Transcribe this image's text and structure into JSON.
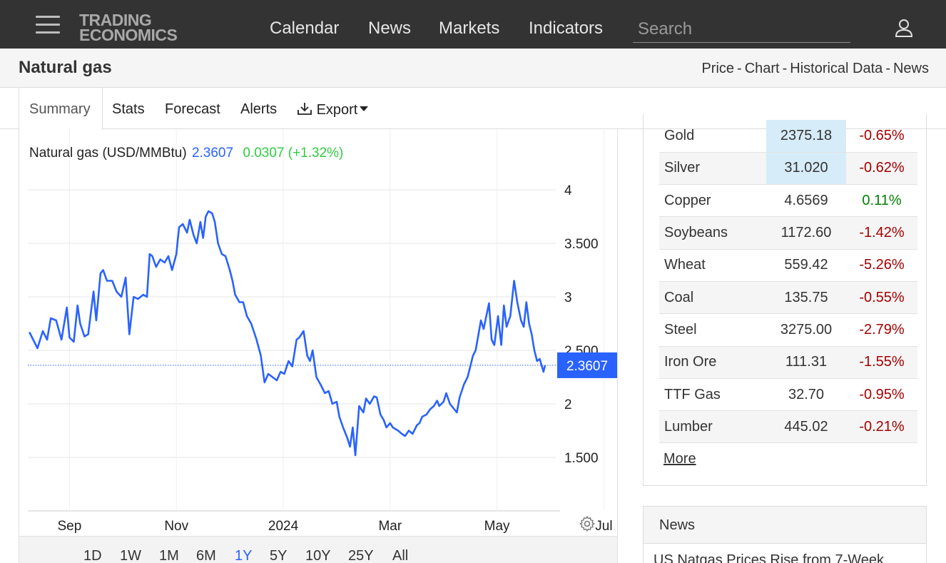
{
  "nav": {
    "logo_line1": "TRADING",
    "logo_line2": "ECONOMICS",
    "links": [
      "Calendar",
      "News",
      "Markets",
      "Indicators"
    ],
    "search_placeholder": "Search"
  },
  "title_bar": {
    "title": "Natural gas",
    "links": [
      "Price",
      "Chart",
      "Historical Data",
      "News"
    ],
    "separator": "-"
  },
  "tabs": {
    "summary": "Summary",
    "stats": "Stats",
    "forecast": "Forecast",
    "alerts": "Alerts",
    "export": "Export",
    "active": "Summary"
  },
  "chart_legend": {
    "name": "Natural gas (USD/MMBtu)",
    "price": "2.3607",
    "change": "0.0307 (+1.32%)"
  },
  "chart_data": {
    "type": "line",
    "title": "Natural gas (USD/MMBtu)",
    "x_ticks": [
      "Sep",
      "Nov",
      "2024",
      "Mar",
      "May",
      "Jul"
    ],
    "y_ticks": [
      "4",
      "3.500",
      "3",
      "2.500",
      "2",
      "1.500"
    ],
    "ylim": [
      1.0,
      4.3
    ],
    "last_value": 2.3607,
    "last_label": "2.3607",
    "line_color": "#2962ff",
    "grid": true,
    "x_unit": "month offset from Sep 2023 (0 = Sep 1, 2023)",
    "series": [
      {
        "name": "Natural gas",
        "points": [
          [
            -0.75,
            2.67
          ],
          [
            -0.7,
            2.62
          ],
          [
            -0.6,
            2.52
          ],
          [
            -0.5,
            2.68
          ],
          [
            -0.42,
            2.6
          ],
          [
            -0.35,
            2.8
          ],
          [
            -0.25,
            2.78
          ],
          [
            -0.15,
            2.6
          ],
          [
            -0.05,
            2.9
          ],
          [
            0.0,
            2.62
          ],
          [
            0.08,
            2.58
          ],
          [
            0.15,
            2.92
          ],
          [
            0.2,
            2.75
          ],
          [
            0.28,
            2.63
          ],
          [
            0.35,
            2.65
          ],
          [
            0.45,
            3.05
          ],
          [
            0.5,
            2.78
          ],
          [
            0.58,
            3.22
          ],
          [
            0.63,
            3.25
          ],
          [
            0.7,
            3.15
          ],
          [
            0.8,
            3.15
          ],
          [
            0.88,
            3.05
          ],
          [
            0.97,
            3.0
          ],
          [
            1.05,
            3.18
          ],
          [
            1.12,
            2.65
          ],
          [
            1.2,
            3.0
          ],
          [
            1.28,
            2.98
          ],
          [
            1.38,
            3.02
          ],
          [
            1.45,
            3.0
          ],
          [
            1.5,
            3.4
          ],
          [
            1.55,
            3.38
          ],
          [
            1.62,
            3.28
          ],
          [
            1.7,
            3.35
          ],
          [
            1.78,
            3.32
          ],
          [
            1.85,
            3.38
          ],
          [
            1.92,
            3.25
          ],
          [
            2.0,
            3.4
          ],
          [
            2.05,
            3.65
          ],
          [
            2.12,
            3.68
          ],
          [
            2.2,
            3.6
          ],
          [
            2.25,
            3.72
          ],
          [
            2.32,
            3.58
          ],
          [
            2.38,
            3.5
          ],
          [
            2.45,
            3.7
          ],
          [
            2.5,
            3.55
          ],
          [
            2.55,
            3.75
          ],
          [
            2.6,
            3.8
          ],
          [
            2.67,
            3.78
          ],
          [
            2.72,
            3.7
          ],
          [
            2.78,
            3.5
          ],
          [
            2.85,
            3.4
          ],
          [
            2.92,
            3.38
          ],
          [
            3.0,
            3.25
          ],
          [
            3.05,
            3.15
          ],
          [
            3.1,
            3.02
          ],
          [
            3.18,
            2.95
          ],
          [
            3.25,
            2.95
          ],
          [
            3.32,
            2.82
          ],
          [
            3.4,
            2.75
          ],
          [
            3.5,
            2.6
          ],
          [
            3.58,
            2.45
          ],
          [
            3.65,
            2.2
          ],
          [
            3.72,
            2.28
          ],
          [
            3.8,
            2.25
          ],
          [
            3.88,
            2.22
          ],
          [
            3.95,
            2.3
          ],
          [
            4.02,
            2.28
          ],
          [
            4.1,
            2.4
          ],
          [
            4.17,
            2.35
          ],
          [
            4.25,
            2.6
          ],
          [
            4.3,
            2.62
          ],
          [
            4.38,
            2.68
          ],
          [
            4.45,
            2.45
          ],
          [
            4.5,
            2.4
          ],
          [
            4.55,
            2.5
          ],
          [
            4.62,
            2.25
          ],
          [
            4.7,
            2.18
          ],
          [
            4.78,
            2.1
          ],
          [
            4.85,
            2.12
          ],
          [
            4.92,
            2.0
          ],
          [
            5.0,
            2.02
          ],
          [
            5.05,
            1.88
          ],
          [
            5.12,
            1.78
          ],
          [
            5.2,
            1.68
          ],
          [
            5.25,
            1.6
          ],
          [
            5.3,
            1.78
          ],
          [
            5.35,
            1.52
          ],
          [
            5.42,
            1.98
          ],
          [
            5.5,
            1.92
          ],
          [
            5.55,
            2.05
          ],
          [
            5.62,
            2.0
          ],
          [
            5.7,
            2.07
          ],
          [
            5.75,
            2.06
          ],
          [
            5.82,
            1.9
          ],
          [
            5.88,
            1.85
          ],
          [
            5.93,
            1.78
          ],
          [
            6.0,
            1.82
          ],
          [
            6.05,
            1.78
          ],
          [
            6.15,
            1.75
          ],
          [
            6.22,
            1.72
          ],
          [
            6.28,
            1.7
          ],
          [
            6.35,
            1.75
          ],
          [
            6.42,
            1.72
          ],
          [
            6.5,
            1.8
          ],
          [
            6.55,
            1.82
          ],
          [
            6.6,
            1.88
          ],
          [
            6.68,
            1.9
          ],
          [
            6.75,
            1.95
          ],
          [
            6.82,
            1.98
          ],
          [
            6.88,
            2.03
          ],
          [
            6.92,
            1.98
          ],
          [
            7.0,
            2.02
          ],
          [
            7.05,
            2.1
          ],
          [
            7.12,
            2.0
          ],
          [
            7.2,
            1.95
          ],
          [
            7.25,
            1.92
          ],
          [
            7.3,
            2.06
          ],
          [
            7.38,
            2.18
          ],
          [
            7.45,
            2.25
          ],
          [
            7.5,
            2.35
          ],
          [
            7.55,
            2.45
          ],
          [
            7.6,
            2.5
          ],
          [
            7.7,
            2.78
          ],
          [
            7.75,
            2.7
          ],
          [
            7.85,
            2.94
          ],
          [
            7.9,
            2.6
          ],
          [
            7.95,
            2.55
          ],
          [
            8.02,
            2.82
          ],
          [
            8.08,
            2.55
          ],
          [
            8.13,
            2.92
          ],
          [
            8.18,
            2.72
          ],
          [
            8.25,
            2.82
          ],
          [
            8.32,
            3.15
          ],
          [
            8.38,
            2.95
          ],
          [
            8.45,
            2.78
          ],
          [
            8.5,
            2.72
          ],
          [
            8.55,
            2.95
          ],
          [
            8.6,
            2.75
          ],
          [
            8.65,
            2.65
          ],
          [
            8.7,
            2.5
          ],
          [
            8.75,
            2.4
          ],
          [
            8.8,
            2.42
          ],
          [
            8.87,
            2.3
          ],
          [
            8.9,
            2.36
          ]
        ]
      }
    ]
  },
  "chart_ranges": {
    "buttons": [
      "1D",
      "1W",
      "1M",
      "6M",
      "1Y",
      "5Y",
      "10Y",
      "25Y",
      "All"
    ],
    "active": "1Y"
  },
  "commodities": {
    "rows": [
      {
        "name": "Gold",
        "value": "2375.18",
        "change": "-0.65%",
        "dir": "neg",
        "hl": true
      },
      {
        "name": "Silver",
        "value": "31.020",
        "change": "-0.62%",
        "dir": "neg",
        "hl": true
      },
      {
        "name": "Copper",
        "value": "4.6569",
        "change": "0.11%",
        "dir": "pos",
        "hl": false
      },
      {
        "name": "Soybeans",
        "value": "1172.60",
        "change": "-1.42%",
        "dir": "neg",
        "hl": false
      },
      {
        "name": "Wheat",
        "value": "559.42",
        "change": "-5.26%",
        "dir": "neg",
        "hl": false
      },
      {
        "name": "Coal",
        "value": "135.75",
        "change": "-0.55%",
        "dir": "neg",
        "hl": false
      },
      {
        "name": "Steel",
        "value": "3275.00",
        "change": "-2.79%",
        "dir": "neg",
        "hl": false
      },
      {
        "name": "Iron Ore",
        "value": "111.31",
        "change": "-1.55%",
        "dir": "neg",
        "hl": false
      },
      {
        "name": "TTF Gas",
        "value": "32.70",
        "change": "-0.95%",
        "dir": "neg",
        "hl": false
      },
      {
        "name": "Lumber",
        "value": "445.02",
        "change": "-0.21%",
        "dir": "neg",
        "hl": false
      }
    ],
    "more_label": "More"
  },
  "news": {
    "header": "News",
    "first_headline": "US Natgas Prices Rise from 7-Week"
  }
}
